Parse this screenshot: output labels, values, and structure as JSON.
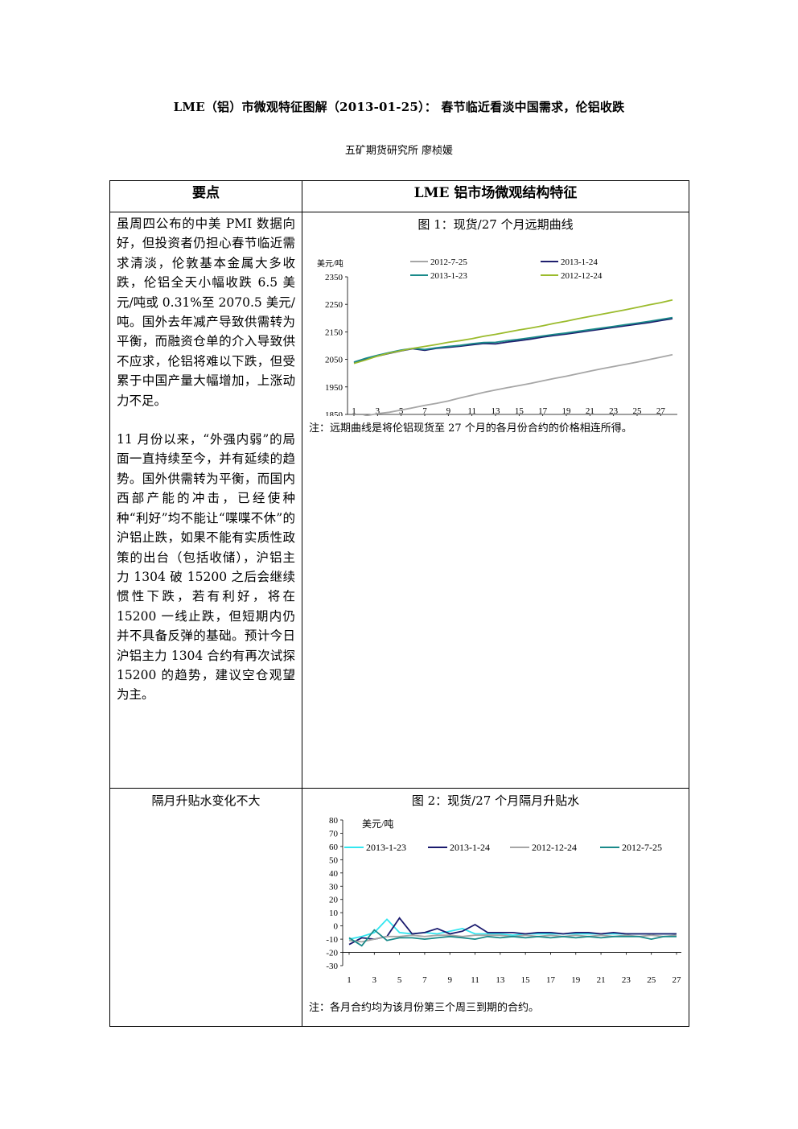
{
  "doc": {
    "title": "LME（铝）市微观特征图解（2013-01-25）：  春节临近看淡中国需求，伦铝收跌",
    "author": "五矿期货研究所  廖桢媛"
  },
  "table": {
    "header_left": "要点",
    "header_right": "LME 铝市场微观结构特征",
    "row1": {
      "para1": "虽周四公布的中美 PMI 数据向好，但投资者仍担心春节临近需求清淡，伦敦基本金属大多收跌，伦铝全天小幅收跌 6.5 美元/吨或 0.31%至 2070.5 美元/吨。国外去年减产导致供需转为平衡，而融资仓单的介入导致供不应求，伦铝将难以下跌，但受累于中国产量大幅增加，上涨动力不足。",
      "para2": "11 月份以来，“外强内弱”的局面一直持续至今，并有延续的趋势。国外供需转为平衡，而国内西部产能的冲击，已经使种种“利好”均不能让“喋喋不休”的沪铝止跌，如果不能有实质性政策的出台（包括收储），沪铝主力 1304 破 15200 之后会继续惯性下跌，若有利好，将在 15200 一线止跌，但短期内仍并不具备反弹的基础。预计今日沪铝主力 1304 合约有再次试探 15200 的趋势，建议空仓观望为主。",
      "chart_title": "图 1：现货/27 个月远期曲线",
      "note": "注：远期曲线是将伦铝现货至 27 个月的各月份合约的价格相连所得。"
    },
    "row2": {
      "left_title": "隔月升贴水变化不大",
      "chart_title": "图 2：现货/27 个月隔月升贴水",
      "note": "注：各月合约均为该月份第三个周三到期的合约。"
    }
  },
  "chart_data": [
    {
      "type": "line",
      "title": "图 1：现货/27 个月远期曲线",
      "ylabel": "美元/吨",
      "ylim": [
        1850,
        2350
      ],
      "yticks": [
        1850,
        1950,
        2050,
        2150,
        2250,
        2350
      ],
      "x": [
        1,
        2,
        3,
        4,
        5,
        6,
        7,
        8,
        9,
        10,
        11,
        12,
        13,
        14,
        15,
        16,
        17,
        18,
        19,
        20,
        21,
        22,
        23,
        24,
        25,
        26,
        27,
        28
      ],
      "xticks": [
        1,
        3,
        5,
        7,
        9,
        11,
        13,
        15,
        17,
        19,
        21,
        23,
        25,
        27
      ],
      "legend_position": "top",
      "series": [
        {
          "name": "2012-7-25",
          "color": "#a6a6a6",
          "values": [
            1830,
            1845,
            1853,
            1858,
            1866,
            1874,
            1883,
            1890,
            1899,
            1910,
            1920,
            1930,
            1939,
            1947,
            1955,
            1963,
            1972,
            1981,
            1989,
            1998,
            2007,
            2016,
            2024,
            2032,
            2040,
            2049,
            2058,
            2067
          ]
        },
        {
          "name": "2013-1-24",
          "color": "#1f1f6e",
          "values": [
            2038,
            2052,
            2062,
            2072,
            2081,
            2089,
            2083,
            2090,
            2094,
            2098,
            2103,
            2108,
            2106,
            2113,
            2118,
            2124,
            2131,
            2137,
            2142,
            2148,
            2154,
            2160,
            2166,
            2172,
            2178,
            2184,
            2191,
            2198
          ]
        },
        {
          "name": "2013-1-23",
          "color": "#1a8a8a",
          "values": [
            2040,
            2054,
            2065,
            2075,
            2084,
            2090,
            2086,
            2092,
            2097,
            2101,
            2107,
            2111,
            2112,
            2118,
            2123,
            2129,
            2135,
            2141,
            2146,
            2152,
            2158,
            2164,
            2170,
            2176,
            2182,
            2188,
            2195,
            2202
          ]
        },
        {
          "name": "2012-12-24",
          "color": "#9bbb2c",
          "values": [
            2035,
            2048,
            2062,
            2073,
            2082,
            2090,
            2097,
            2104,
            2112,
            2118,
            2125,
            2134,
            2141,
            2149,
            2157,
            2164,
            2172,
            2181,
            2189,
            2198,
            2206,
            2214,
            2222,
            2230,
            2239,
            2248,
            2256,
            2266
          ]
        }
      ]
    },
    {
      "type": "line",
      "title": "图 2：现货/27 个月隔月升贴水",
      "ylabel": "美元/吨",
      "ylim": [
        -30,
        80
      ],
      "yticks": [
        -30,
        -20,
        -10,
        0,
        10,
        20,
        30,
        40,
        50,
        60,
        70,
        80
      ],
      "x": [
        1,
        2,
        3,
        4,
        5,
        6,
        7,
        8,
        9,
        10,
        11,
        12,
        13,
        14,
        15,
        16,
        17,
        18,
        19,
        20,
        21,
        22,
        23,
        24,
        25,
        26,
        27
      ],
      "xticks": [
        1,
        3,
        5,
        7,
        9,
        11,
        13,
        15,
        17,
        19,
        21,
        23,
        25,
        27
      ],
      "legend_position": "top",
      "series": [
        {
          "name": "2013-1-23",
          "color": "#33e6f0",
          "values": [
            -10,
            -8,
            -5,
            5,
            -5,
            -6,
            -5,
            -6,
            -4,
            -2,
            -6,
            -6,
            -6,
            -7,
            -6,
            -6,
            -6,
            -6,
            -6,
            -6,
            -6,
            -6,
            -6,
            -6,
            -6,
            -6,
            -6
          ]
        },
        {
          "name": "2013-1-24",
          "color": "#1a1a6e",
          "values": [
            -14,
            -9,
            -10,
            -8,
            6,
            -6,
            -5,
            -2,
            -6,
            -4,
            1,
            -5,
            -5,
            -5,
            -6,
            -5,
            -5,
            -6,
            -5,
            -5,
            -6,
            -5,
            -6,
            -6,
            -6,
            -6,
            -6
          ]
        },
        {
          "name": "2012-12-24",
          "color": "#a6a6a6",
          "values": [
            -11,
            -12,
            -10,
            -8,
            -8,
            -7,
            -8,
            -7,
            -7,
            -8,
            -7,
            -7,
            -7,
            -8,
            -7,
            -8,
            -7,
            -8,
            -7,
            -8,
            -7,
            -8,
            -7,
            -8,
            -7,
            -8,
            -7
          ]
        },
        {
          "name": "2012-7-25",
          "color": "#1a8a8a",
          "values": [
            -9,
            -15,
            -3,
            -11,
            -9,
            -9,
            -10,
            -9,
            -8,
            -9,
            -10,
            -8,
            -9,
            -8,
            -9,
            -8,
            -9,
            -8,
            -9,
            -8,
            -9,
            -8,
            -8,
            -8,
            -10,
            -8,
            -8
          ]
        }
      ]
    }
  ]
}
